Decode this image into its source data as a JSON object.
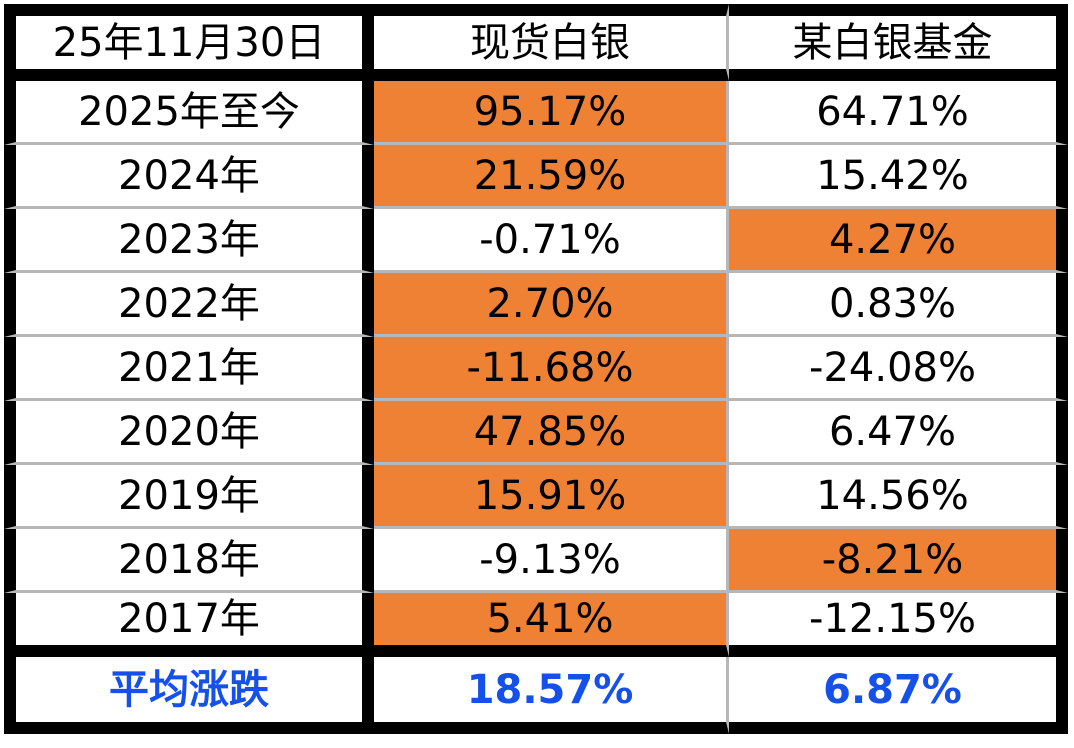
{
  "header": {
    "date": "25年11月30日",
    "col1": "现货白银",
    "col2": "某白银基金"
  },
  "rows": [
    {
      "label": "2025年至今",
      "silver": "95.17%",
      "fund": "64.71%"
    },
    {
      "label": "2024年",
      "silver": "21.59%",
      "fund": "15.42%"
    },
    {
      "label": "2023年",
      "silver": "-0.71%",
      "fund": "4.27%"
    },
    {
      "label": "2022年",
      "silver": "2.70%",
      "fund": "0.83%"
    },
    {
      "label": "2021年",
      "silver": "-11.68%",
      "fund": "-24.08%"
    },
    {
      "label": "2020年",
      "silver": "47.85%",
      "fund": "6.47%"
    },
    {
      "label": "2019年",
      "silver": "15.91%",
      "fund": "14.56%"
    },
    {
      "label": "2018年",
      "silver": "-9.13%",
      "fund": "-8.21%"
    },
    {
      "label": "2017年",
      "silver": "5.41%",
      "fund": "-12.15%"
    }
  ],
  "average": {
    "label": "平均涨跌",
    "silver": "18.57%",
    "fund": "6.87%"
  },
  "colors": {
    "highlight": "#ee8134",
    "average_text": "#1550e8",
    "border": "#000000",
    "grid_line": "#b7b7b7"
  }
}
